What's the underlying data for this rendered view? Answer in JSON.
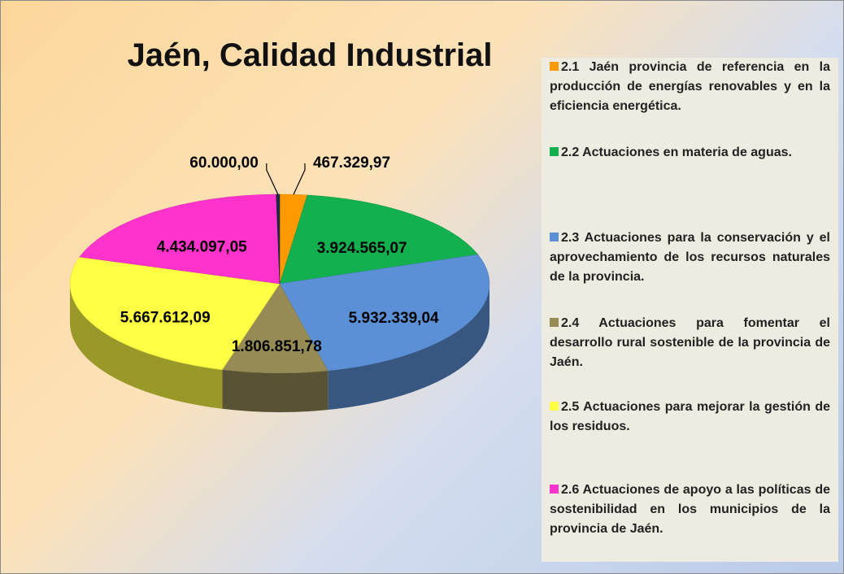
{
  "chart_data": {
    "type": "pie",
    "title": "Jaén, Calidad Industrial",
    "categories": [
      "2.1 Jaén provincia de referencia en la producción de energías renovables y en la eficiencia energética.",
      "2.2 Actuaciones en materia de aguas.",
      "2.3 Actuaciones para la conservación y el aprovechamiento de los recursos naturales de la provincia.",
      "2.4 Actuaciones para fomentar el desarrollo rural sostenible de la provincia de Jaén.",
      "2.5 Actuaciones para mejorar la gestión de los residuos.",
      "2.6 Actuaciones de apoyo a las políticas de sostenibilidad en los municipios de la provincia de Jaén.",
      null
    ],
    "values": [
      467329.97,
      3924565.07,
      5932339.04,
      1806851.78,
      5667612.09,
      4434097.05,
      60000.0
    ],
    "value_labels": [
      "467.329,97",
      "3.924.565,07",
      "5.932.339,04",
      "1.806.851,78",
      "5.667.612,09",
      "4.434.097,05",
      "60.000,00"
    ],
    "colors": [
      "#ff9900",
      "#12b04e",
      "#5b8fd6",
      "#968b55",
      "#ffff44",
      "#ff33cc",
      "#1e2a46"
    ],
    "legend": "right"
  }
}
